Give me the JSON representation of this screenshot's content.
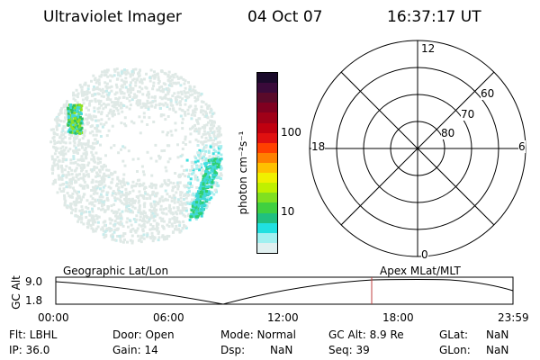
{
  "header": {
    "title": "Ultraviolet Imager",
    "date": "04 Oct 07",
    "time": "16:37:17 UT"
  },
  "colorbar": {
    "unit_label": "photon cm⁻²s⁻¹",
    "ticks": [
      "100",
      "10"
    ],
    "colors": [
      "#1a0a2a",
      "#3a0a3a",
      "#5a0a2a",
      "#800020",
      "#a00018",
      "#c00010",
      "#e01010",
      "#ff4000",
      "#ff8000",
      "#ffc000",
      "#f0f000",
      "#c0f000",
      "#80e020",
      "#40d040",
      "#20c080",
      "#20e0e0",
      "#a0f0f0",
      "#e0f0f0"
    ]
  },
  "polar_plot": {
    "mlt_labels": {
      "top": "12",
      "left": "18",
      "right": "6",
      "bottom": "0"
    },
    "lat_labels": [
      "60",
      "70",
      "80"
    ]
  },
  "altitude_panel": {
    "y_axis_label": "GC Alt",
    "y_max": "9.0",
    "y_min": "1.8",
    "left_caption": "Geographic Lat/Lon",
    "right_caption": "Apex MLat/MLT",
    "x_ticks": [
      "00:00",
      "06:00",
      "12:00",
      "18:00",
      "23:59"
    ],
    "marker_color": "#c04040"
  },
  "info": {
    "flt": "Flt: LBHL",
    "ip": "IP: 36.0",
    "door": "Door: Open",
    "gain": "Gain: 14",
    "mode": "Mode: Normal",
    "dsp_label": "Dsp:",
    "dsp_value": "NaN",
    "gc_alt": "GC Alt: 8.9 Re",
    "seq": "Seq: 39",
    "glat_label": "GLat:",
    "glat_value": "NaN",
    "glon_label": "GLon:",
    "glon_value": "NaN"
  }
}
